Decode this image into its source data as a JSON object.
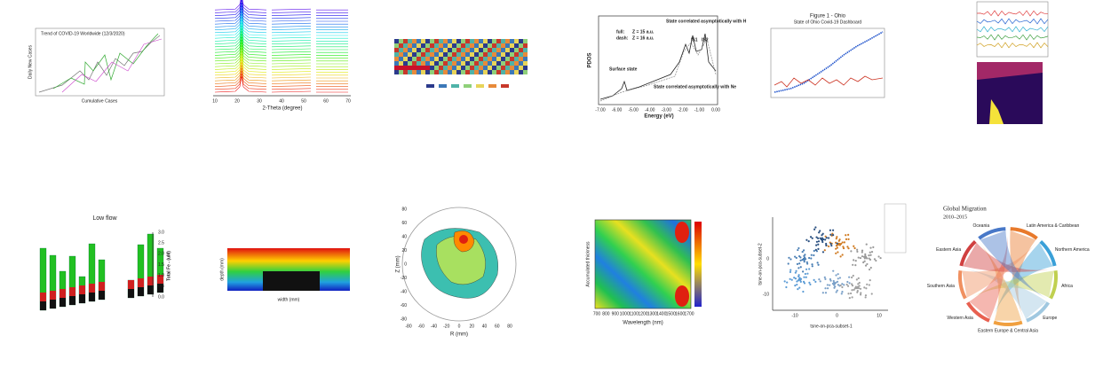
{
  "tiles": [
    {
      "title": "Trend of COVID-19 Worldwide (12/3/2020)",
      "x_label": "Cumulative Cases",
      "y_label": "Daily New Cases"
    },
    {
      "x_label": "2-Theta (degree)",
      "x_ticks": [
        10,
        20,
        30,
        40,
        50,
        60,
        70
      ]
    },
    {},
    {
      "y_label": "PDOS",
      "x_label": "Energy (eV)",
      "legend": [
        "full:",
        "dash:"
      ],
      "legend_values": [
        "Z = 15 a.u.",
        "Z = 16 a.u."
      ],
      "annotations": [
        "State correlated asymptotically with H",
        "Surface state",
        "IS1",
        "IS2",
        "State correlated asymptotically with Ne"
      ],
      "x_ticks": [
        "-7.00",
        "-6.00",
        "-5.00",
        "-4.00",
        "-3.00",
        "-2.00",
        "-1.00",
        "0.00"
      ]
    },
    {
      "title": "Figure 1 - Ohio",
      "subtitle": "State of Ohio Covid-19 Dashboard"
    },
    {},
    {
      "title": "Low flow",
      "y_label": "Total Fe - (uM)",
      "y_ticks": [
        "0.0",
        "0.5",
        "1.0",
        "1.5",
        "2.0",
        "2.5",
        "3.0"
      ]
    },
    {
      "x_label": "width (mm)",
      "y_label": "depth (mm)"
    },
    {
      "y_label": "Z (mm)",
      "x_label": "R (mm)",
      "y_ticks": [
        -80,
        -60,
        -40,
        -20,
        0,
        20,
        40,
        60,
        80
      ],
      "x_ticks": [
        -80,
        -60,
        -40,
        -20,
        0,
        20,
        40,
        60,
        80
      ]
    },
    {
      "y_label": "Accumulated thickness",
      "x_label": "Wavelength (nm)",
      "x_ticks": [
        700,
        800,
        900,
        1000,
        1100,
        1200,
        1300,
        1400,
        1500,
        1600,
        1700
      ]
    },
    {
      "x_label": "tsne-on-pca-subset-1",
      "y_label": "tsne-on-pca-subset-2",
      "x_ticks": [
        -10,
        0,
        10
      ],
      "y_ticks": [
        -10,
        0
      ]
    },
    {
      "title": "Global Migration",
      "subtitle": "2010–2015",
      "regions": [
        "Latin America & Caribbean",
        "Northern America",
        "Africa",
        "Europe",
        "Eastern Europe & Central Asia",
        "Western Asia",
        "Southern Asia",
        "Eastern Asia",
        "Oceania"
      ]
    }
  ]
}
